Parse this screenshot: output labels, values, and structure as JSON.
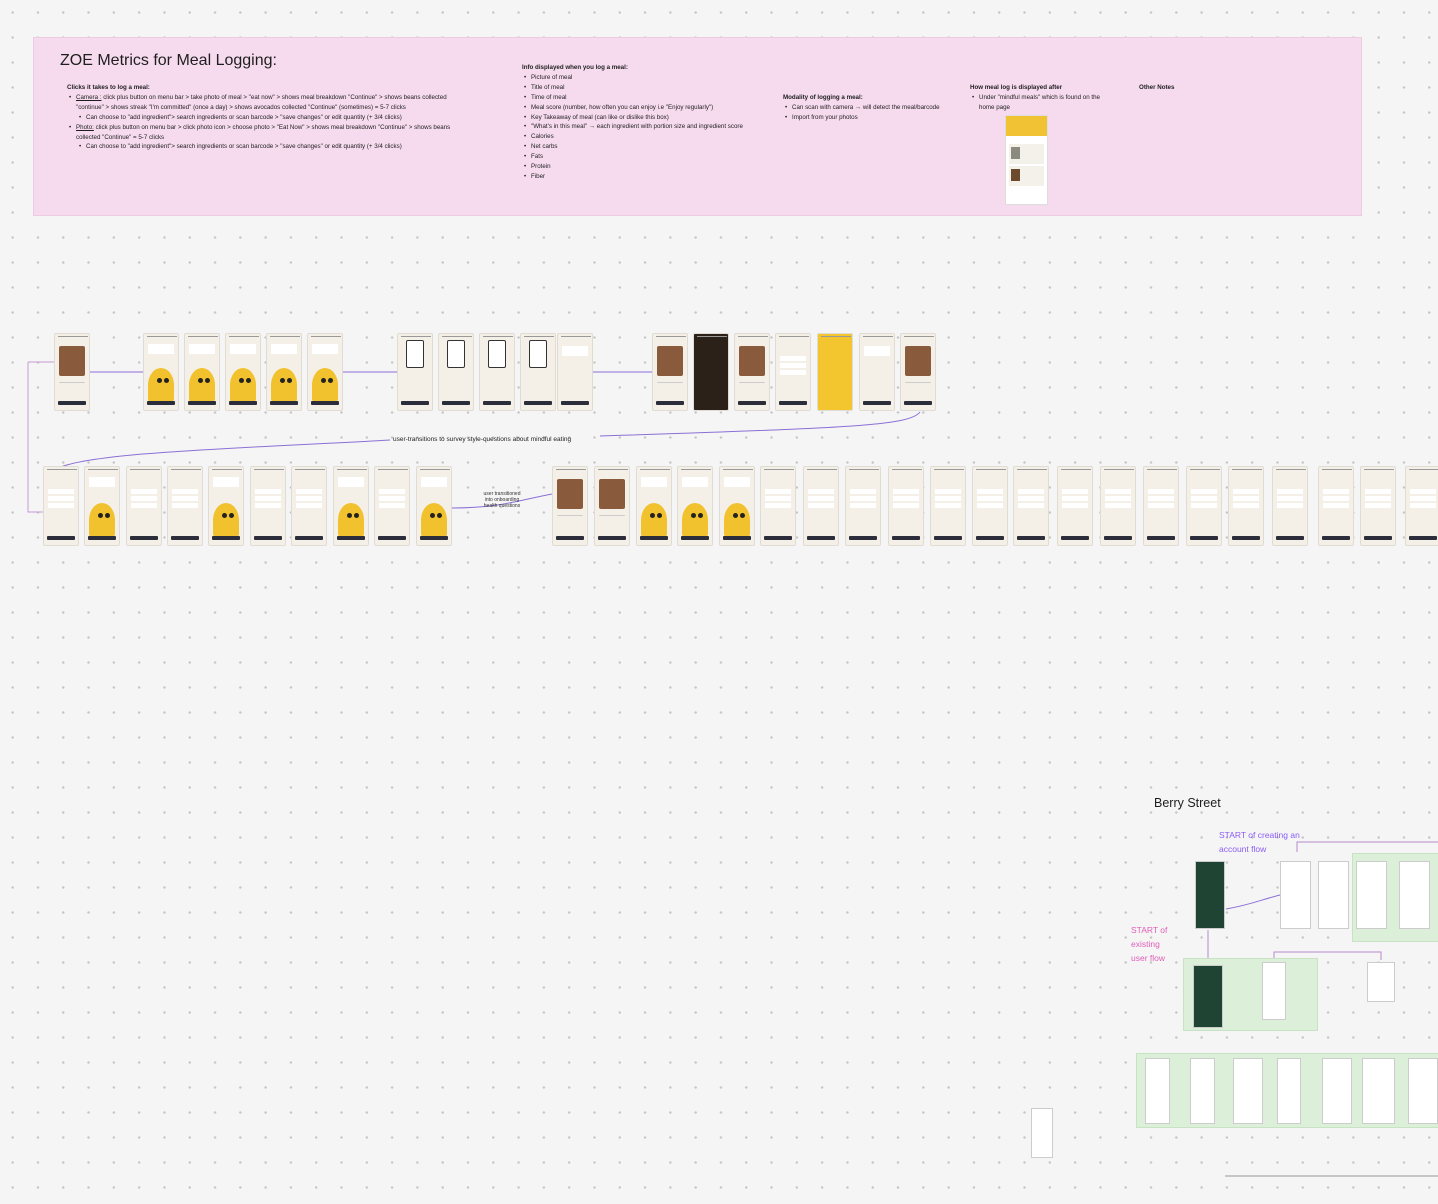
{
  "notes": {
    "title": "ZOE Metrics for Meal Logging:",
    "clicks": {
      "heading": "Clicks it takes to log a meal:",
      "camera_label": "Camera :",
      "camera_text": "click plus button on menu bar > take photo of meal > \"eat now\" > shows meal breakdown \"Continue\" > shows beans collected \"continue\" > shows streak \"I'm committed\" (once a day) > shows avocados collected \"Continue\" (sometimes) = 5-7 clicks",
      "camera_sub": "Can choose to \"add ingredient\"> search ingredients or scan barcode > \"save changes\" or edit quantity (+ 3/4 clicks)",
      "photo_label": "Photo:",
      "photo_text": "click plus button on menu bar > click photo icon > choose photo > \"Eat Now\" > shows meal breakdown \"Continue\" > shows beans collected \"Continue\" = 5-7 clicks",
      "photo_sub": "Can choose to \"add ingredient\"> search ingredients or scan barcode > \"save changes\" or edit quantity (+ 3/4 clicks)"
    },
    "info": {
      "heading": "Info displayed when you log a meal:",
      "items": [
        "Picture of meal",
        "Title of meal",
        "Time of meal",
        "Meal score (number, how often you can enjoy i.e \"Enjoy regularly\")",
        "Key Takeaway of meal (can like or dislike this box)",
        "\"What's in this meal\" → each ingredient with portion size and ingredient score",
        "Calories",
        "Net carbs",
        "Fats",
        "Protein",
        "Fiber"
      ]
    },
    "modality": {
      "heading": "Modality of logging a meal:",
      "items": [
        "Can scan with camera → will detect the meal/barcode",
        "Import from your photos"
      ]
    },
    "display": {
      "heading": "How meal log is displayed after",
      "item": "Under \"mindful meals\" which is found on the home page"
    },
    "other": {
      "heading": "Other Notes"
    }
  },
  "flow": {
    "survey_transition": "user-transitions to survey style-questions about mindful eating",
    "onboarding_transition": "user transitioned into onboarding health questions"
  },
  "berry": {
    "title": "Berry Street",
    "create_account": "START of creating an account flow",
    "existing_user": "START of existing user flow"
  },
  "colors": {
    "notes_bg": "#f6dbef",
    "connector": "#8b6fd6",
    "mascot": "#f2c12e",
    "create_label": "#8b5cf6",
    "existing_label": "#e05fb8",
    "berry_green": "#dcefd9"
  }
}
